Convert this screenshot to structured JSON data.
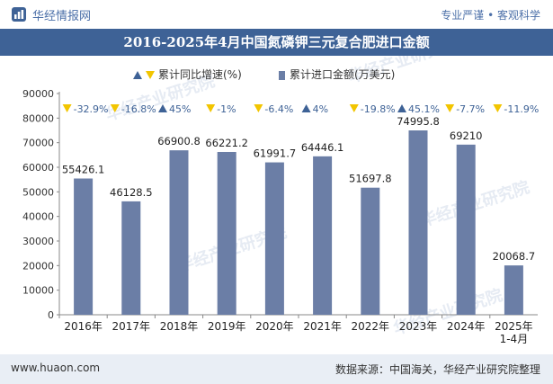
{
  "header": {
    "site_name": "华经情报网",
    "tagline": "专业严谨 • 客观科学"
  },
  "footer": {
    "website": "www.huaon.com",
    "source": "数据来源：中国海关，华经产业研究院整理"
  },
  "watermark": "华经产业研究院",
  "colors": {
    "bar": "#6b7ea6",
    "triangle_up": "#3e6296",
    "triangle_down": "#f2c500",
    "growth_text": "#3e6296",
    "header_band": "#3e6296"
  },
  "chart_data": {
    "type": "bar",
    "title": "2016-2025年4月中国氮磷钾三元复合肥进口金额",
    "categories": [
      "2016年",
      "2017年",
      "2018年",
      "2019年",
      "2020年",
      "2021年",
      "2022年",
      "2023年",
      "2024年",
      "2025年\n1-4月"
    ],
    "series": [
      {
        "name": "累计进口金额(万美元)",
        "values": [
          55426.1,
          46128.5,
          66900.8,
          66221.2,
          61991.7,
          64446.1,
          51697.8,
          74995.8,
          69210,
          20068.7
        ],
        "value_labels": [
          "55426.1",
          "46128.5",
          "66900.8",
          "66221.2",
          "61991.7",
          "64446.1",
          "51697.8",
          "74995.8",
          "69210",
          "20068.7"
        ]
      },
      {
        "name": "累计同比增速(%)",
        "values": [
          -32.9,
          -16.8,
          45,
          -1,
          -6.4,
          4,
          -19.8,
          45.1,
          -7.7,
          -11.9
        ],
        "value_labels": [
          "-32.9%",
          "-16.8%",
          "45%",
          "-1%",
          "-6.4%",
          "4%",
          "-19.8%",
          "45.1%",
          "-7.7%",
          "-11.9%"
        ]
      }
    ],
    "legend": {
      "growth_label": "累计同比增速(%)",
      "amount_label": "累计进口金额(万美元)",
      "position": "top-center"
    },
    "ylim": [
      0,
      90000
    ],
    "yticks": [
      "0",
      "10000",
      "20000",
      "30000",
      "40000",
      "50000",
      "60000",
      "70000",
      "80000",
      "90000"
    ],
    "grid": false
  }
}
